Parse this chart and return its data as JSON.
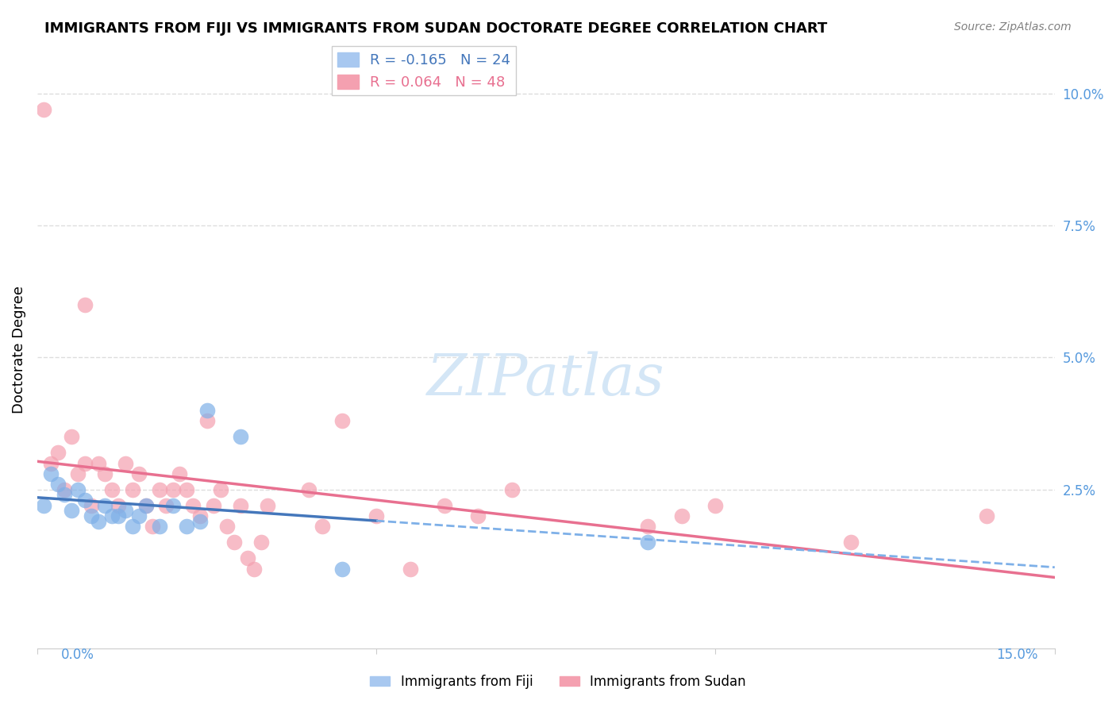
{
  "title": "IMMIGRANTS FROM FIJI VS IMMIGRANTS FROM SUDAN DOCTORATE DEGREE CORRELATION CHART",
  "source": "Source: ZipAtlas.com",
  "ylabel": "Doctorate Degree",
  "right_yticks": [
    "10.0%",
    "7.5%",
    "5.0%",
    "2.5%"
  ],
  "right_ytick_vals": [
    0.1,
    0.075,
    0.05,
    0.025
  ],
  "xlim": [
    0.0,
    0.15
  ],
  "ylim": [
    -0.005,
    0.108
  ],
  "fiji_color": "#7EB0E8",
  "sudan_color": "#F4A0B0",
  "fiji_R": -0.165,
  "fiji_N": 24,
  "sudan_R": 0.064,
  "sudan_N": 48,
  "watermark": "ZIPatlas",
  "grid_color": "#DDDDDD",
  "background_color": "#FFFFFF",
  "fiji_scatter_x": [
    0.001,
    0.002,
    0.003,
    0.004,
    0.005,
    0.006,
    0.007,
    0.008,
    0.009,
    0.01,
    0.011,
    0.012,
    0.013,
    0.014,
    0.015,
    0.016,
    0.018,
    0.02,
    0.022,
    0.024,
    0.025,
    0.03,
    0.045,
    0.09
  ],
  "fiji_scatter_y": [
    0.022,
    0.028,
    0.026,
    0.024,
    0.021,
    0.025,
    0.023,
    0.02,
    0.019,
    0.022,
    0.02,
    0.02,
    0.021,
    0.018,
    0.02,
    0.022,
    0.018,
    0.022,
    0.018,
    0.019,
    0.04,
    0.035,
    0.01,
    0.015
  ],
  "sudan_scatter_x": [
    0.001,
    0.002,
    0.003,
    0.004,
    0.005,
    0.006,
    0.007,
    0.007,
    0.008,
    0.009,
    0.01,
    0.011,
    0.012,
    0.013,
    0.014,
    0.015,
    0.016,
    0.017,
    0.018,
    0.019,
    0.02,
    0.021,
    0.022,
    0.023,
    0.024,
    0.025,
    0.026,
    0.027,
    0.028,
    0.029,
    0.03,
    0.031,
    0.032,
    0.033,
    0.034,
    0.04,
    0.042,
    0.045,
    0.05,
    0.055,
    0.06,
    0.065,
    0.07,
    0.09,
    0.095,
    0.1,
    0.12,
    0.14
  ],
  "sudan_scatter_y": [
    0.097,
    0.03,
    0.032,
    0.025,
    0.035,
    0.028,
    0.03,
    0.06,
    0.022,
    0.03,
    0.028,
    0.025,
    0.022,
    0.03,
    0.025,
    0.028,
    0.022,
    0.018,
    0.025,
    0.022,
    0.025,
    0.028,
    0.025,
    0.022,
    0.02,
    0.038,
    0.022,
    0.025,
    0.018,
    0.015,
    0.022,
    0.012,
    0.01,
    0.015,
    0.022,
    0.025,
    0.018,
    0.038,
    0.02,
    0.01,
    0.022,
    0.02,
    0.025,
    0.018,
    0.02,
    0.022,
    0.015,
    0.02
  ]
}
